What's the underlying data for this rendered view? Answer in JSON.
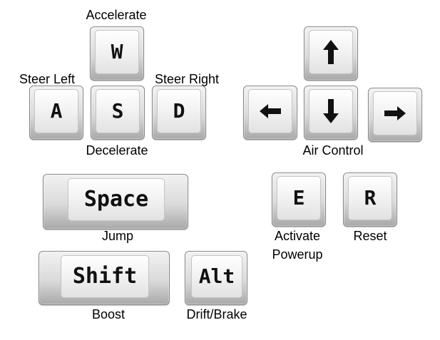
{
  "keys": {
    "w": "W",
    "a": "A",
    "s": "S",
    "d": "D",
    "space": "Space",
    "shift": "Shift",
    "alt": "Alt",
    "e": "E",
    "r": "R"
  },
  "arrow_keys": [
    "up-arrow-icon",
    "left-arrow-icon",
    "down-arrow-icon",
    "right-arrow-icon"
  ],
  "labels": {
    "accelerate": "Accelerate",
    "steer_left": "Steer Left",
    "steer_right": "Steer Right",
    "decelerate": "Decelerate",
    "air_control": "Air Control",
    "jump": "Jump",
    "activate_line1": "Activate",
    "activate_line2": "Powerup",
    "reset": "Reset",
    "boost": "Boost",
    "drift_brake": "Drift/Brake"
  },
  "colors": {
    "text": "#000000",
    "key_face": "#f3f3f3",
    "key_edge": "#a9a9a9"
  }
}
